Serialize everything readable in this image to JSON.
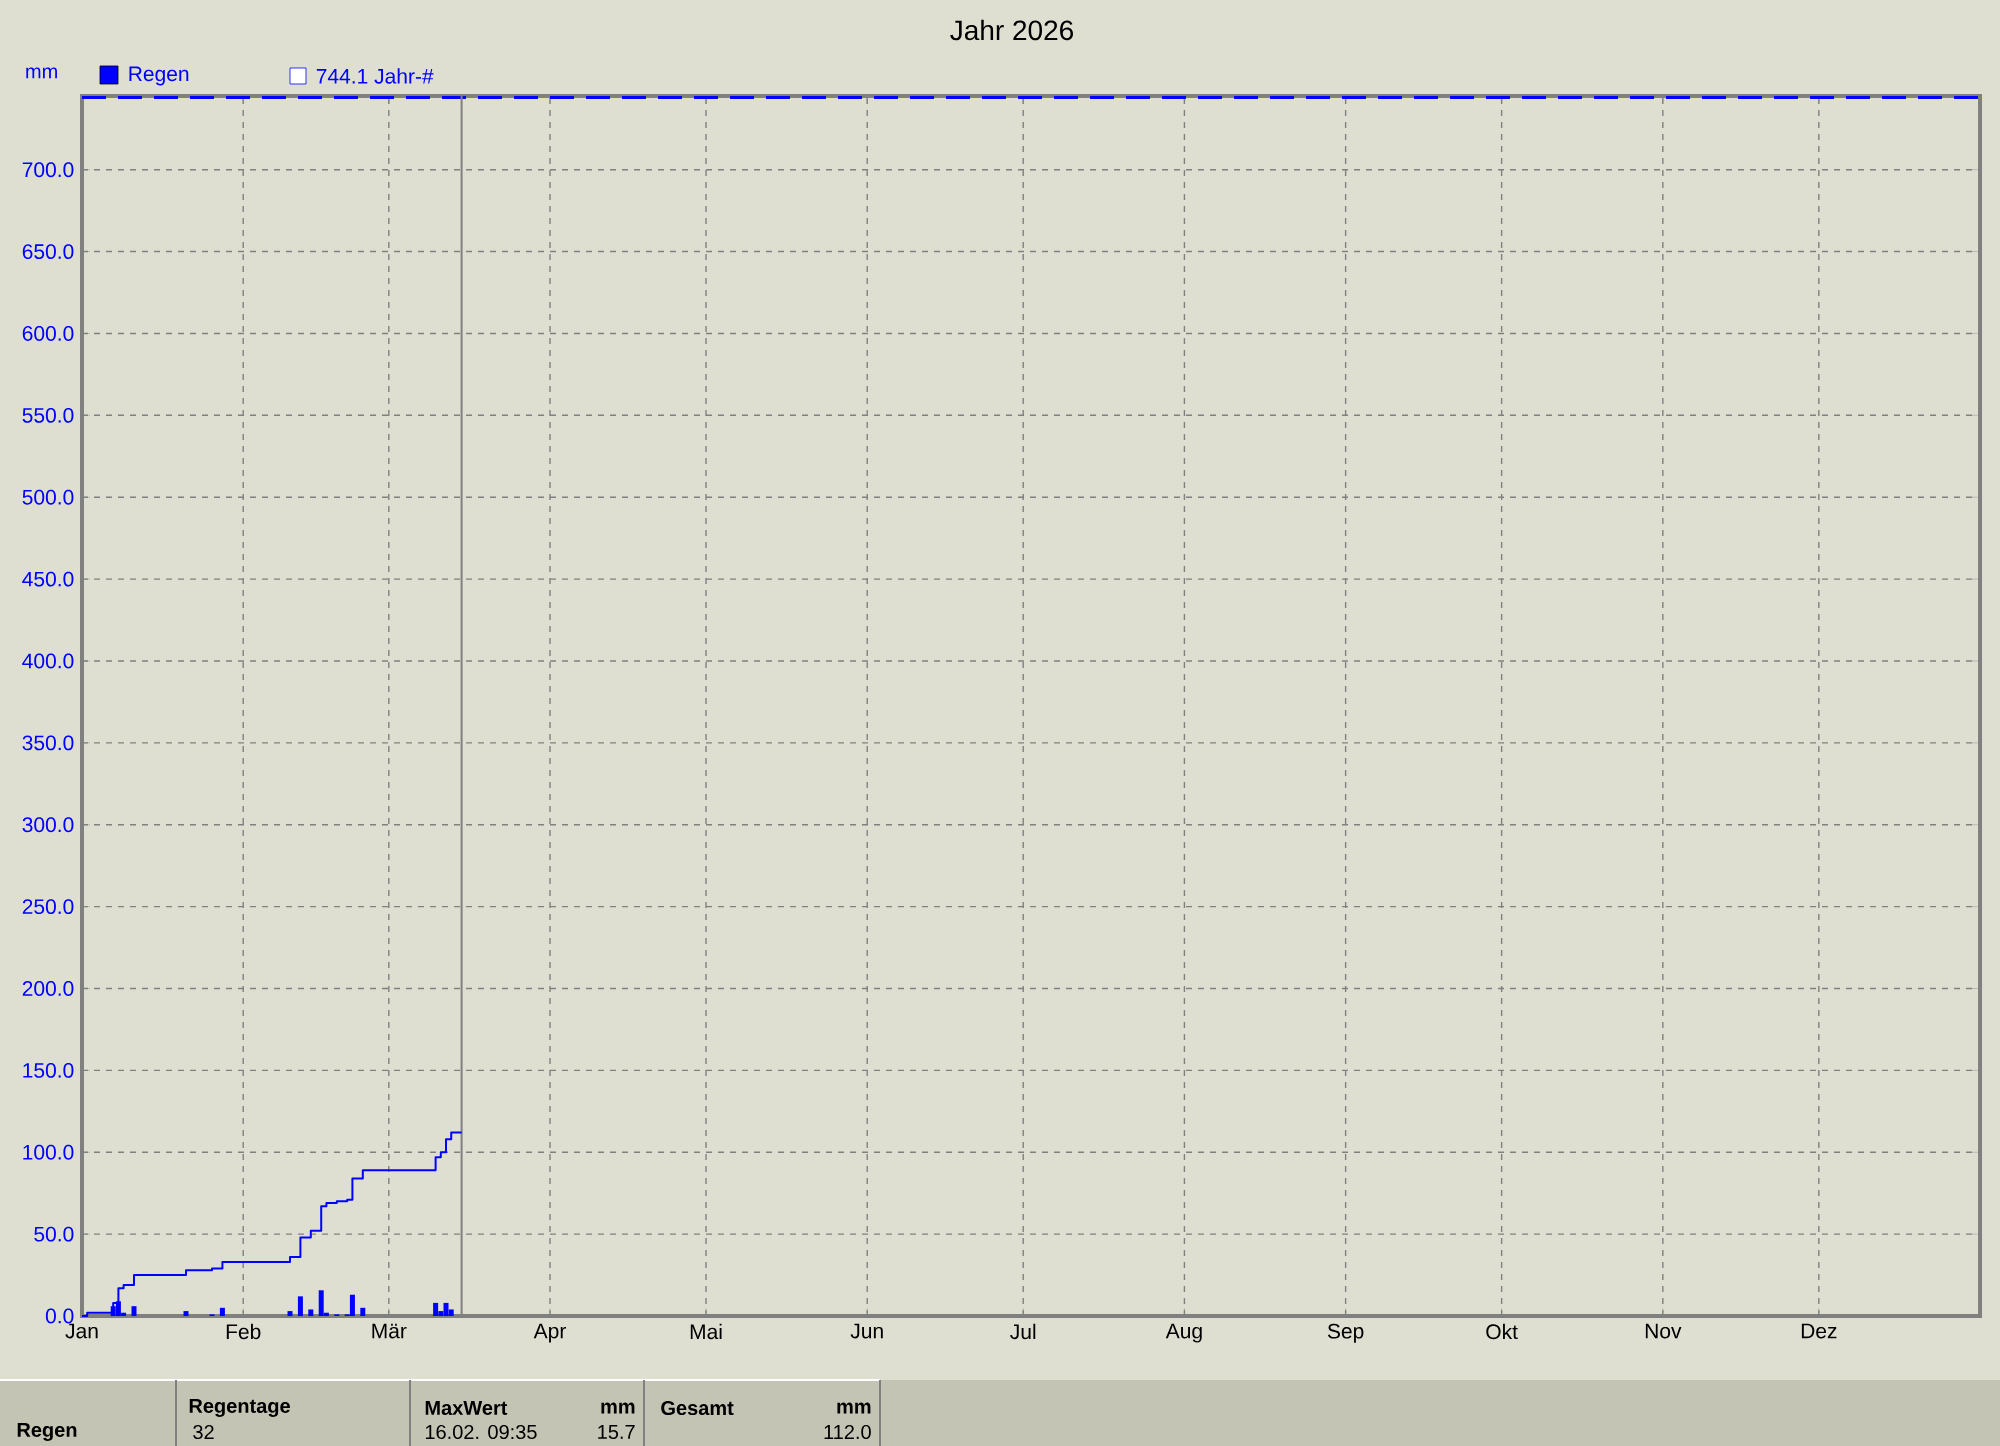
{
  "chart_data": {
    "type": "bar",
    "title": "Jahr 2026",
    "ylabel": "mm",
    "xlim": [
      "2026-01-01",
      "2027-01-01"
    ],
    "xticks": [
      {
        "value": "2026-01-01",
        "label": "Jan"
      },
      {
        "value": "2026-02-01",
        "label": "Feb"
      },
      {
        "value": "2026-03-01",
        "label": "Mär"
      },
      {
        "value": "2026-04-01",
        "label": "Apr"
      },
      {
        "value": "2026-05-01",
        "label": "Mai"
      },
      {
        "value": "2026-06-01",
        "label": "Jun"
      },
      {
        "value": "2026-07-01",
        "label": "Jul"
      },
      {
        "value": "2026-08-01",
        "label": "Aug"
      },
      {
        "value": "2026-09-01",
        "label": "Sep"
      },
      {
        "value": "2026-10-01",
        "label": "Okt"
      },
      {
        "value": "2026-11-01",
        "label": "Nov"
      },
      {
        "value": "2026-12-01",
        "label": "Dez"
      }
    ],
    "ylim": [
      0,
      745
    ],
    "yticks": [
      {
        "value": 0,
        "label": "0.0"
      },
      {
        "value": 50,
        "label": "50.0"
      },
      {
        "value": 100,
        "label": "100.0"
      },
      {
        "value": 150,
        "label": "150.0"
      },
      {
        "value": 200,
        "label": "200.0"
      },
      {
        "value": 250,
        "label": "250.0"
      },
      {
        "value": 300,
        "label": "300.0"
      },
      {
        "value": 350,
        "label": "350.0"
      },
      {
        "value": 400,
        "label": "400.0"
      },
      {
        "value": 450,
        "label": "450.0"
      },
      {
        "value": 500,
        "label": "500.0"
      },
      {
        "value": 550,
        "label": "550.0"
      },
      {
        "value": 600,
        "label": "600.0"
      },
      {
        "value": 650,
        "label": "650.0"
      },
      {
        "value": 700,
        "label": "700.0"
      }
    ],
    "grid": true,
    "legend": "top left",
    "series": [
      {
        "name": "Regen",
        "color": "#0000ff",
        "x": [
          "2026-01-07",
          "2026-01-08",
          "2026-01-09",
          "2026-01-11",
          "2026-01-21",
          "2026-01-26",
          "2026-01-28",
          "2026-02-10",
          "2026-02-12",
          "2026-02-14",
          "2026-02-16",
          "2026-02-17",
          "2026-02-19",
          "2026-02-21",
          "2026-02-22",
          "2026-02-24",
          "2026-03-10",
          "2026-03-11",
          "2026-03-12",
          "2026-03-13"
        ],
        "values": [
          6,
          9,
          2,
          6,
          3,
          1,
          5,
          3,
          12,
          4,
          15.7,
          2,
          1,
          1,
          13,
          5,
          8,
          3,
          8,
          4
        ]
      },
      {
        "type": "step",
        "color": "#0000ff",
        "x": [
          "2026-01-01",
          "2026-01-02",
          "2026-01-07",
          "2026-01-08",
          "2026-01-09",
          "2026-01-11",
          "2026-01-21",
          "2026-01-26",
          "2026-01-28",
          "2026-02-10",
          "2026-02-12",
          "2026-02-14",
          "2026-02-16",
          "2026-02-17",
          "2026-02-19",
          "2026-02-21",
          "2026-02-22",
          "2026-02-24",
          "2026-03-10",
          "2026-03-11",
          "2026-03-12",
          "2026-03-13",
          "2026-03-15"
        ],
        "values": [
          0,
          2,
          8,
          17,
          19,
          25,
          28,
          29,
          33,
          36,
          48,
          52,
          67,
          69,
          70,
          71,
          84,
          89,
          97,
          100,
          108,
          112,
          112
        ]
      }
    ],
    "ref_lines": [
      {
        "axis": "y",
        "value": 744.1,
        "label": "744.1 Jahr-#",
        "color": "#0000ff",
        "line_style": "dashed"
      },
      {
        "axis": "x",
        "value": "2026-03-15",
        "color": "#808080",
        "line_style": "solid"
      }
    ],
    "annotations": [
      "Regentage",
      "MaxWert",
      "mm",
      "Gesamt",
      "mm",
      "Regen",
      "32",
      "16.02. 09:35",
      "15.7",
      "112.0"
    ]
  }
}
